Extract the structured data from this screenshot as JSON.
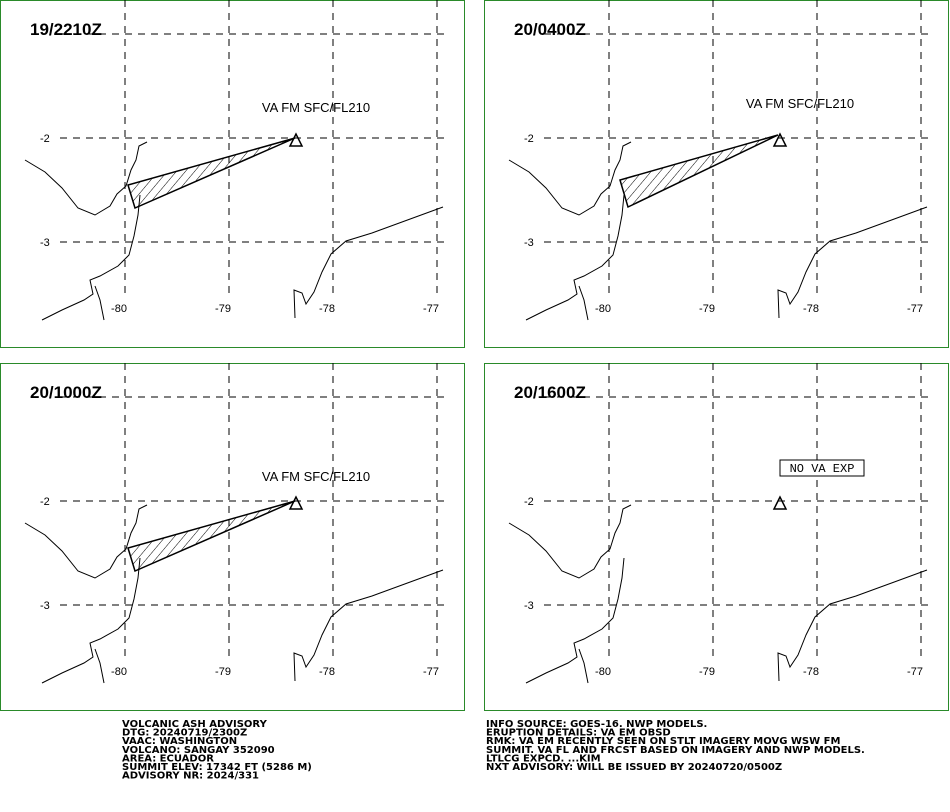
{
  "panels": [
    {
      "time": "19/2210Z",
      "label": "VA FM SFC/FL210"
    },
    {
      "time": "20/0400Z",
      "label": "VA FM SFC/FL210"
    },
    {
      "time": "20/1000Z",
      "label": "VA FM SFC/FL210"
    },
    {
      "time": "20/1600Z",
      "label": "NO VA EXP"
    }
  ],
  "axes": {
    "lon": [
      -80,
      -79,
      -78,
      -77
    ],
    "lat": [
      -2,
      -3
    ]
  },
  "advisory_left": [
    "VOLCANIC ASH ADVISORY",
    "DTG: 20240719/2300Z",
    "VAAC: WASHINGTON",
    "VOLCANO: SANGAY 352090",
    "AREA: ECUADOR",
    "SUMMIT ELEV: 17342 FT (5286 M)",
    "ADVISORY NR: 2024/331"
  ],
  "advisory_right": [
    "INFO SOURCE: GOES-16. NWP MODELS.",
    "ERUPTION DETAILS: VA EM OBSD",
    "RMK: VA EM RECENTLY SEEN ON STLT IMAGERY MOVG WSW FM",
    "SUMMIT. VA FL AND FRCST BASED ON IMAGERY AND NWP MODELS.",
    "LTLCG EXPCD. ...KIM",
    "NXT ADVISORY: WILL BE ISSUED BY 20240720/0500Z"
  ]
}
